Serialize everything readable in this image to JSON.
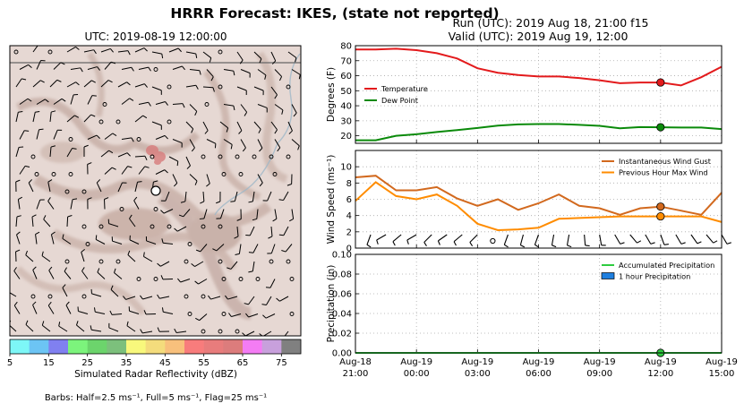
{
  "title": "HRRR Forecast: IKES, (state not reported)",
  "map": {
    "subtitle": "UTC: 2019-08-19 12:00:00",
    "colorbar": {
      "label": "Simulated Radar Reflectivity (dBZ)",
      "tick_labels": [
        "5",
        "15",
        "25",
        "35",
        "45",
        "55",
        "65",
        "75"
      ],
      "colors": [
        "#7df7f7",
        "#6cc4f4",
        "#8080f0",
        "#7cf47c",
        "#6cd46c",
        "#7cc07c",
        "#f8f87c",
        "#f4dc7c",
        "#f8c07c",
        "#f87c7c",
        "#e87c7c",
        "#dc7c7c",
        "#f47cf4",
        "#c8a0dc",
        "#808080"
      ]
    },
    "barbs_note": "Barbs: Half=2.5 ms⁻¹, Full=5 ms⁻¹, Flag=25 ms⁻¹"
  },
  "run_line": "Run (UTC): 2019 Aug 18, 21:00 f15",
  "valid_line": "Valid (UTC): 2019 Aug 19, 12:00",
  "x_tick_labels": [
    [
      "Aug-18",
      "21:00"
    ],
    [
      "Aug-19",
      "00:00"
    ],
    [
      "Aug-19",
      "03:00"
    ],
    [
      "Aug-19",
      "06:00"
    ],
    [
      "Aug-19",
      "09:00"
    ],
    [
      "Aug-19",
      "12:00"
    ],
    [
      "Aug-19",
      "15:00"
    ]
  ],
  "chart_data": [
    {
      "type": "line",
      "ylabel": "Degrees (F)",
      "ylim": [
        15,
        80
      ],
      "yticks": [
        20,
        30,
        40,
        50,
        60,
        70,
        80
      ],
      "x_hours": [
        0,
        1,
        2,
        3,
        4,
        5,
        6,
        7,
        8,
        9,
        10,
        11,
        12,
        13,
        14,
        15,
        16,
        17,
        18
      ],
      "legend": "left",
      "grid": true,
      "marker_hour": 15,
      "series": [
        {
          "name": "Temperature",
          "color": "#e31a1c",
          "values": [
            77.5,
            77.5,
            78,
            77,
            75,
            71.5,
            65,
            62,
            60.5,
            59.5,
            59.5,
            58.5,
            57,
            55,
            55.5,
            55.5,
            53.5,
            59,
            66
          ]
        },
        {
          "name": "Dew Point",
          "color": "#0a8a0a",
          "values": [
            17,
            17,
            20,
            21,
            22.5,
            23.8,
            25.2,
            26.8,
            27.6,
            27.8,
            27.8,
            27.3,
            26.6,
            25,
            25.8,
            25.7,
            25.5,
            25.5,
            24.5
          ]
        }
      ]
    },
    {
      "type": "line",
      "ylabel": "Wind Speed (ms⁻¹)",
      "ylim": [
        0,
        12
      ],
      "yticks": [
        0,
        2,
        4,
        6,
        8,
        10
      ],
      "x_hours": [
        0,
        1,
        2,
        3,
        4,
        5,
        6,
        7,
        8,
        9,
        10,
        11,
        12,
        13,
        14,
        15,
        16,
        17,
        18
      ],
      "legend": "top-right",
      "grid": true,
      "marker_hour": 15,
      "series": [
        {
          "name": "Instantaneous Wind Gust",
          "color": "#d2691e",
          "values": [
            8.7,
            8.9,
            7.1,
            7.1,
            7.5,
            6.1,
            5.2,
            6.0,
            4.7,
            5.5,
            6.6,
            5.2,
            4.9,
            4.1,
            4.9,
            5.1,
            4.6,
            4.1,
            6.8
          ]
        },
        {
          "name": "Previous Hour Max Wind",
          "color": "#ff8c00",
          "values": [
            5.8,
            8.1,
            6.4,
            6.0,
            6.6,
            5.2,
            3.0,
            2.2,
            2.3,
            2.5,
            3.6,
            3.7,
            3.8,
            3.9,
            3.9,
            3.9,
            3.9,
            3.9,
            3.2
          ]
        }
      ],
      "barbs": [
        {
          "hour": 0.75,
          "dir": 200
        },
        {
          "hour": 1.5,
          "dir": 240
        },
        {
          "hour": 2.25,
          "dir": 230
        },
        {
          "hour": 3.0,
          "dir": 240
        },
        {
          "hour": 3.75,
          "dir": 225
        },
        {
          "hour": 4.5,
          "dir": 235
        },
        {
          "hour": 5.25,
          "dir": 230
        },
        {
          "hour": 6.0,
          "dir": 225
        },
        {
          "hour": 6.75,
          "calm": true
        },
        {
          "hour": 7.5,
          "dir": 200
        },
        {
          "hour": 8.25,
          "dir": 195
        },
        {
          "hour": 9.0,
          "dir": 200
        },
        {
          "hour": 9.75,
          "dir": 190
        },
        {
          "hour": 10.5,
          "dir": 190
        },
        {
          "hour": 11.25,
          "dir": 175
        },
        {
          "hour": 12.0,
          "dir": 170
        },
        {
          "hour": 12.75,
          "dir": 150
        },
        {
          "hour": 13.5,
          "dir": 140
        },
        {
          "hour": 14.25,
          "dir": 150
        },
        {
          "hour": 15.0,
          "dir": 160
        },
        {
          "hour": 15.75,
          "dir": 150
        },
        {
          "hour": 16.5,
          "dir": 145
        },
        {
          "hour": 17.25,
          "dir": 140
        },
        {
          "hour": 18.0,
          "dir": 150
        }
      ]
    },
    {
      "type": "line",
      "ylabel": "Precipitation (in)",
      "ylim": [
        0,
        0.1
      ],
      "yticks": [
        0.0,
        0.02,
        0.04,
        0.06,
        0.08,
        0.1
      ],
      "ytick_labels": [
        "0.00",
        "0.02",
        "0.04",
        "0.06",
        "0.08",
        "0.10"
      ],
      "x_hours": [
        0,
        1,
        2,
        3,
        4,
        5,
        6,
        7,
        8,
        9,
        10,
        11,
        12,
        13,
        14,
        15,
        16,
        17,
        18
      ],
      "legend": "top-right",
      "grid": true,
      "marker_hour": 15,
      "series": [
        {
          "name": "Accumulated Precipitation",
          "color": "#2ecc40",
          "values": [
            0,
            0,
            0,
            0,
            0,
            0,
            0,
            0,
            0,
            0,
            0,
            0,
            0,
            0,
            0,
            0,
            0,
            0,
            0
          ]
        },
        {
          "name": "1 hour Precipitation",
          "color": "#1e7fdf",
          "kind": "bar",
          "values": [
            0,
            0,
            0,
            0,
            0,
            0,
            0,
            0,
            0,
            0,
            0,
            0,
            0,
            0,
            0,
            0,
            0,
            0,
            0
          ]
        }
      ]
    }
  ]
}
